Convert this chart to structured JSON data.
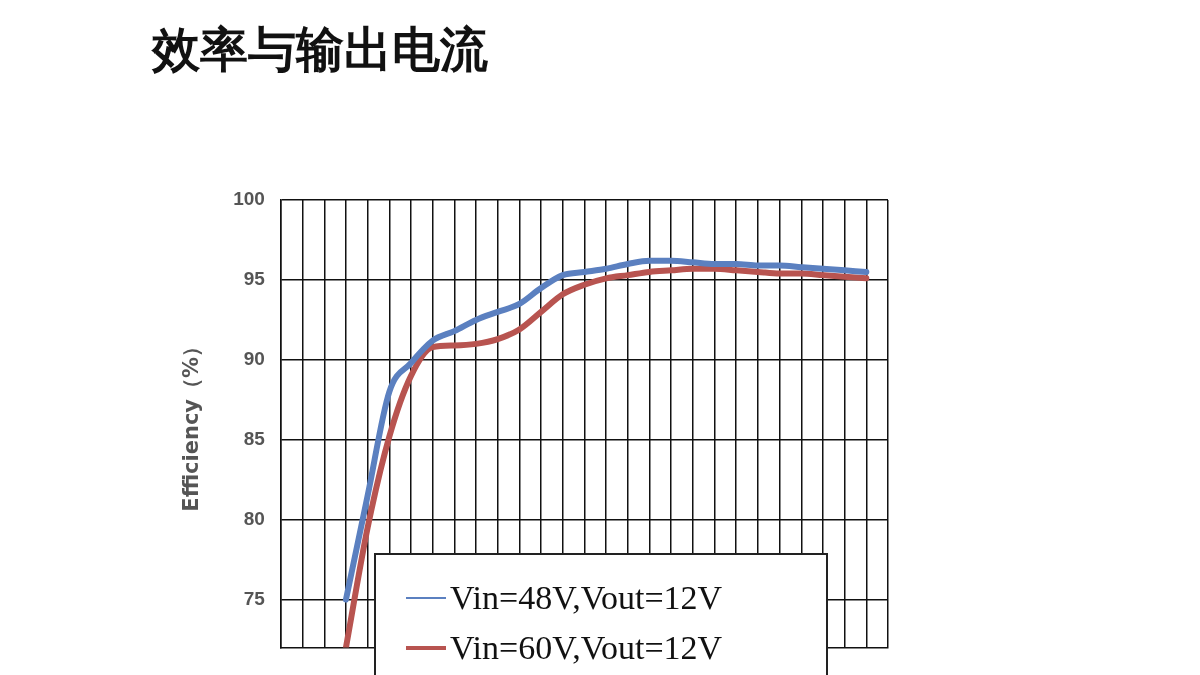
{
  "chart_data": {
    "type": "line",
    "title": "效率与输出电流",
    "ylabel": "Efficiency（%）",
    "categories": [
      null,
      null,
      null,
      null,
      null,
      null,
      null,
      null,
      null,
      null,
      null,
      null,
      null,
      null,
      null,
      null,
      null,
      null,
      null,
      null,
      null,
      null,
      null,
      null,
      null,
      null,
      null,
      null,
      null
    ],
    "series": [
      {
        "name": "Vin=48V,Vout=12V",
        "color": "#5b80c0",
        "values": [
          null,
          null,
          null,
          75.0,
          81.5,
          88.0,
          89.8,
          91.2,
          91.8,
          92.5,
          93.0,
          93.5,
          94.5,
          95.3,
          95.5,
          95.7,
          96.0,
          96.2,
          96.2,
          96.1,
          96.0,
          96.0,
          95.9,
          95.9,
          95.8,
          95.7,
          95.6,
          95.5,
          null
        ]
      },
      {
        "name": "Vin=60V,Vout=12V",
        "color": "#b85450",
        "values": [
          null,
          null,
          null,
          72.0,
          79.5,
          85.2,
          89.0,
          90.8,
          90.9,
          91.0,
          91.3,
          91.9,
          93.0,
          94.1,
          94.7,
          95.1,
          95.3,
          95.5,
          95.6,
          95.7,
          95.7,
          95.6,
          95.5,
          95.4,
          95.4,
          95.3,
          95.2,
          95.1,
          null
        ]
      }
    ],
    "ylim": [
      72,
      100
    ],
    "yticks": [
      75,
      80,
      85,
      90,
      95,
      100
    ],
    "grid": true,
    "legend": "bottom",
    "tick_labels": "y",
    "marker": "none",
    "line_style": "solid"
  }
}
